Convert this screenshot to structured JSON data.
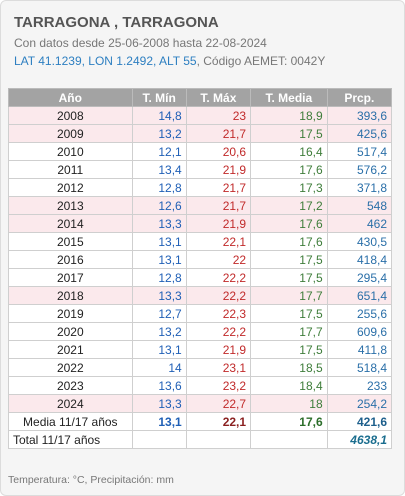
{
  "station": {
    "title": "TARRAGONA , TARRAGONA",
    "subtitle": "Con datos desde 25-06-2008 hasta 22-08-2024",
    "coords_text": "LAT 41.1239, LON 1.2492, ALT 55",
    "code_text": ", Código AEMET: 0042Y"
  },
  "table": {
    "headers": [
      "Año",
      "T. Mín",
      "T. Máx",
      "T. Media",
      "Prcp."
    ],
    "rows": [
      {
        "year": "2008",
        "min": "14,8",
        "max": "23",
        "med": "18,9",
        "pre": "393,6",
        "pink": true
      },
      {
        "year": "2009",
        "min": "13,2",
        "max": "21,7",
        "med": "17,5",
        "pre": "425,6",
        "pink": true
      },
      {
        "year": "2010",
        "min": "12,1",
        "max": "20,6",
        "med": "16,4",
        "pre": "517,4",
        "pink": false
      },
      {
        "year": "2011",
        "min": "13,4",
        "max": "21,9",
        "med": "17,6",
        "pre": "576,2",
        "pink": false
      },
      {
        "year": "2012",
        "min": "12,8",
        "max": "21,7",
        "med": "17,3",
        "pre": "371,8",
        "pink": false
      },
      {
        "year": "2013",
        "min": "12,6",
        "max": "21,7",
        "med": "17,2",
        "pre": "548",
        "pink": true
      },
      {
        "year": "2014",
        "min": "13,3",
        "max": "21,9",
        "med": "17,6",
        "pre": "462",
        "pink": true
      },
      {
        "year": "2015",
        "min": "13,1",
        "max": "22,1",
        "med": "17,6",
        "pre": "430,5",
        "pink": false
      },
      {
        "year": "2016",
        "min": "13,1",
        "max": "22",
        "med": "17,5",
        "pre": "418,4",
        "pink": false
      },
      {
        "year": "2017",
        "min": "12,8",
        "max": "22,2",
        "med": "17,5",
        "pre": "295,4",
        "pink": false
      },
      {
        "year": "2018",
        "min": "13,3",
        "max": "22,2",
        "med": "17,7",
        "pre": "651,4",
        "pink": true
      },
      {
        "year": "2019",
        "min": "12,7",
        "max": "22,3",
        "med": "17,5",
        "pre": "255,6",
        "pink": false
      },
      {
        "year": "2020",
        "min": "13,2",
        "max": "22,2",
        "med": "17,7",
        "pre": "609,6",
        "pink": false
      },
      {
        "year": "2021",
        "min": "13,1",
        "max": "21,9",
        "med": "17,5",
        "pre": "411,8",
        "pink": false
      },
      {
        "year": "2022",
        "min": "14",
        "max": "23,1",
        "med": "18,5",
        "pre": "518,4",
        "pink": false
      },
      {
        "year": "2023",
        "min": "13,6",
        "max": "23,2",
        "med": "18,4",
        "pre": "233",
        "pink": false
      },
      {
        "year": "2024",
        "min": "13,3",
        "max": "22,7",
        "med": "18",
        "pre": "254,2",
        "pink": true
      }
    ],
    "average": {
      "label": "Media 11/17 años",
      "min": "13,1",
      "max": "22,1",
      "med": "17,6",
      "pre": "421,6"
    },
    "total": {
      "label": "Total 11/17 años",
      "pre": "4638,1"
    }
  },
  "footnote": "Temperatura: °C, Precipitación: mm",
  "colors": {
    "header_bg": "#a3a3a3",
    "pink_row": "#fbe9ec",
    "min_blue": "#1f5fb6",
    "max_red": "#c12a2a",
    "media_green": "#3e7d3a",
    "prcp_blue": "#2a6fa8"
  }
}
